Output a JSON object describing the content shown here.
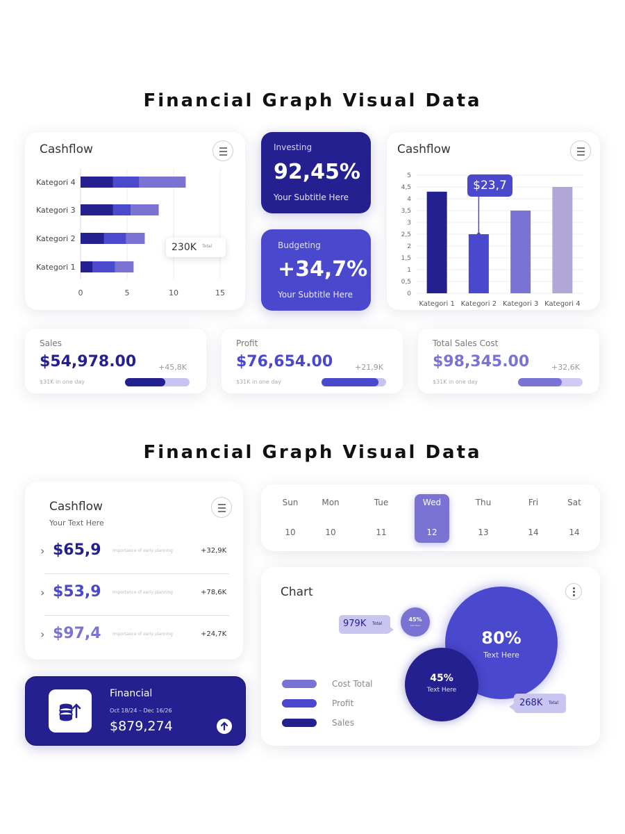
{
  "headings": {
    "top": "Financial Graph Visual Data",
    "bottom": "Financial Graph Visual Data"
  },
  "hbar_card": {
    "title": "Cashflow",
    "tooltip": {
      "value": "230K",
      "label": "Total"
    },
    "chart_data": {
      "type": "bar",
      "orientation": "horizontal",
      "stacked": true,
      "categories": [
        "Kategori 4",
        "Kategori 3",
        "Kategori 2",
        "Kategori 1"
      ],
      "series": [
        {
          "values": [
            3.5,
            3.5,
            2.5,
            1.3
          ],
          "color": "#25208f"
        },
        {
          "values": [
            2.8,
            1.9,
            2.4,
            2.4
          ],
          "color": "#4b49cc"
        },
        {
          "values": [
            5.0,
            3.0,
            2.0,
            2.0
          ],
          "color": "#7a73d3"
        }
      ],
      "xticks": [
        "0",
        "5",
        "10",
        "15"
      ],
      "xlim": [
        0,
        15
      ]
    }
  },
  "investing": {
    "label": "Investing",
    "value": "92,45%",
    "subtitle": "Your Subtitle Here",
    "color": "#25208f"
  },
  "budgeting": {
    "label": "Budgeting",
    "value": "+34,7%",
    "subtitle": "Your Subtitle Here",
    "color": "#4a48cc"
  },
  "vbar_card": {
    "title": "Cashflow",
    "tooltip": "$23,7",
    "chart_data": {
      "type": "bar",
      "categories": [
        "Kategori 1",
        "Kategori 2",
        "Kategori 3",
        "Kategori 4"
      ],
      "values": [
        4.3,
        2.5,
        3.5,
        4.5
      ],
      "colors": [
        "#25208f",
        "#4a48cc",
        "#7a73d3",
        "#b1a8d8"
      ],
      "ylim": [
        0,
        5
      ],
      "yticks": [
        "0",
        "0,5",
        "1",
        "1,5",
        "2",
        "2,5",
        "3",
        "3,5",
        "4",
        "4,5",
        "5"
      ]
    }
  },
  "stats": [
    {
      "label": "Sales",
      "value": "$54,978.00",
      "delta": "+45,8K",
      "sub": "$31K in one day",
      "progress": 0.62,
      "color": "#25208f",
      "track": "#c8c4f2"
    },
    {
      "label": "Profit",
      "value": "$76,654.00",
      "delta": "+21,9K",
      "sub": "$31K in one day",
      "progress": 0.88,
      "color": "#4a48cc",
      "track": "#c8c4f2"
    },
    {
      "label": "Total Sales Cost",
      "value": "$98,345.00",
      "delta": "+32,6K",
      "sub": "$31K in one day",
      "progress": 0.68,
      "color": "#7a73d3",
      "track": "#cfcaf3"
    }
  ],
  "cashflow_list": {
    "title": "Cashflow",
    "subtitle": "Your Text Here",
    "rows": [
      {
        "amount": "$65,9",
        "note": "Importance of early planning",
        "delta": "+32,9K",
        "color": "#25208f"
      },
      {
        "amount": "$53,9",
        "note": "Importance of early planning",
        "delta": "+78,6K",
        "color": "#4a48cc"
      },
      {
        "amount": "$97,4",
        "note": "Importance of early planning",
        "delta": "+24,7K",
        "color": "#7a73d3"
      }
    ]
  },
  "calendar": {
    "days": [
      {
        "name": "Sun",
        "date": "10"
      },
      {
        "name": "Mon",
        "date": "10"
      },
      {
        "name": "Tue",
        "date": "11"
      },
      {
        "name": "Wed",
        "date": "12",
        "selected": true
      },
      {
        "name": "Thu",
        "date": "13"
      },
      {
        "name": "Fri",
        "date": "14"
      },
      {
        "name": "Sat",
        "date": "14"
      }
    ]
  },
  "bubble_card": {
    "title": "Chart",
    "big_bubble": {
      "value": "80%",
      "label": "Text Here"
    },
    "mid_bubble": {
      "value": "45%",
      "label": "Text Here"
    },
    "small_bubble": {
      "value": "45%",
      "label": "Text Here"
    },
    "tooltip_a": {
      "value": "979K",
      "label": "Total"
    },
    "tooltip_b": {
      "value": "268K",
      "label": "Total"
    },
    "legend": [
      {
        "label": "Cost Total",
        "color": "#7a73d3"
      },
      {
        "label": "Profit",
        "color": "#4a48cc"
      },
      {
        "label": "Sales",
        "color": "#25208f"
      }
    ]
  },
  "financial_card": {
    "title": "Financial",
    "dates": "Oct 18/24 – Dec 16/26",
    "amount": "$879,274",
    "icon": "coins-stack-up-icon",
    "color": "#25208f"
  }
}
